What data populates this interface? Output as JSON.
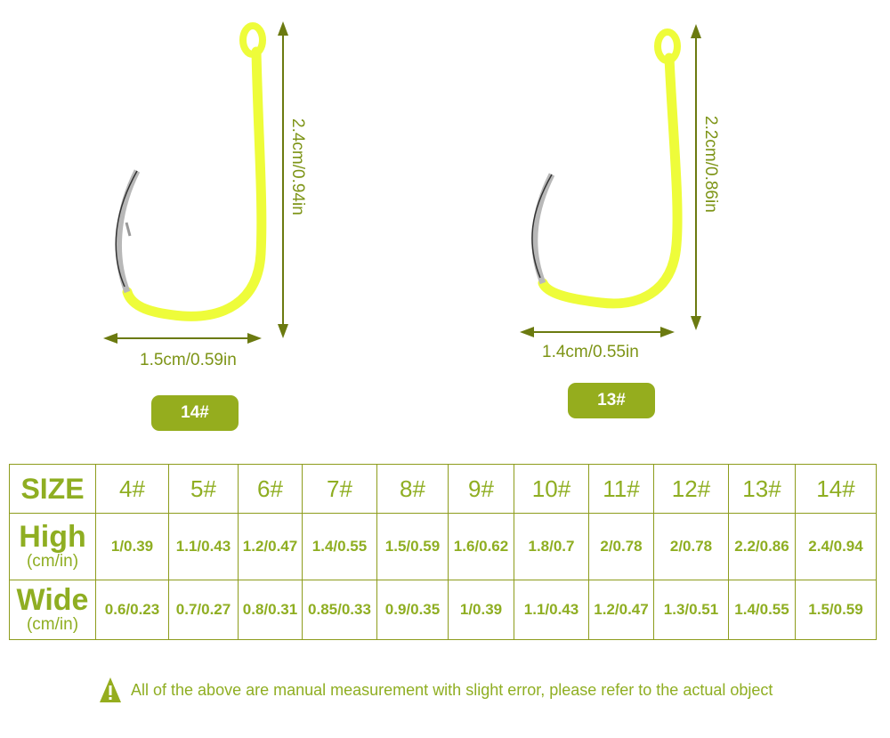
{
  "hooks": [
    {
      "size": "14#",
      "height_label": "2.4cm/0.94in",
      "width_label": "1.5cm/0.59in"
    },
    {
      "size": "13#",
      "height_label": "2.2cm/0.86in",
      "width_label": "1.4cm/0.55in"
    }
  ],
  "colors": {
    "hook": "#eefc3a",
    "accent": "#95ad1e",
    "text": "#8fae22",
    "arrow": "#6b7a10"
  },
  "table": {
    "size_label": "SIZE",
    "high_label": "High",
    "wide_label": "Wide",
    "unit_label": "(cm/in)",
    "sizes": [
      "4#",
      "5#",
      "6#",
      "7#",
      "8#",
      "9#",
      "10#",
      "11#",
      "12#",
      "13#",
      "14#"
    ],
    "high": [
      "1/0.39",
      "1.1/0.43",
      "1.2/0.47",
      "1.4/0.55",
      "1.5/0.59",
      "1.6/0.62",
      "1.8/0.7",
      "2/0.78",
      "2/0.78",
      "2.2/0.86",
      "2.4/0.94"
    ],
    "wide": [
      "0.6/0.23",
      "0.7/0.27",
      "0.8/0.31",
      "0.85/0.33",
      "0.9/0.35",
      "1/0.39",
      "1.1/0.43",
      "1.2/0.47",
      "1.3/0.51",
      "1.4/0.55",
      "1.5/0.59"
    ]
  },
  "note": {
    "icon": "warning-icon",
    "text": "All of the above are manual measurement with slight error, please refer to the actual object"
  }
}
